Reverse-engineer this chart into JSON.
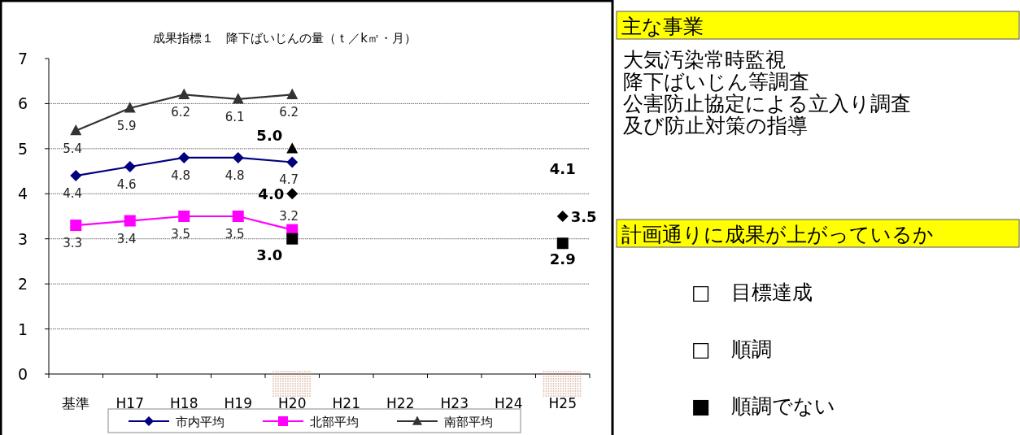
{
  "chart_data": [
    {
      "type": "line",
      "title": "成果指標１　降下ばいじんの量（ｔ／k㎡・月）",
      "categories": [
        "基準",
        "H17",
        "H18",
        "H19",
        "H20",
        "H21",
        "H22",
        "H23",
        "H24",
        "H25"
      ],
      "ylim": [
        0,
        7
      ],
      "yticks": [
        0,
        1,
        2,
        3,
        4,
        5,
        6,
        7
      ],
      "grid": "y",
      "legend": "bottom",
      "series": [
        {
          "name": "市内平均",
          "color": "#000080",
          "marker": "diamond",
          "values": [
            4.4,
            4.6,
            4.8,
            4.8,
            4.7,
            null,
            null,
            null,
            null,
            null
          ],
          "value_labels": [
            "4.4",
            "4.6",
            "4.8",
            "4.8",
            "4.7",
            null,
            null,
            null,
            null,
            null
          ]
        },
        {
          "name": "北部平均",
          "color": "#ff00ff",
          "marker": "square",
          "values": [
            3.3,
            3.4,
            3.5,
            3.5,
            3.2,
            null,
            null,
            null,
            null,
            null
          ],
          "value_labels": [
            "3.3",
            "3.4",
            "3.5",
            "3.5",
            "3.2",
            null,
            null,
            null,
            null,
            null
          ]
        },
        {
          "name": "南部平均",
          "color": "#333333",
          "marker": "triangle",
          "values": [
            5.4,
            5.9,
            6.2,
            6.1,
            6.2,
            null,
            null,
            null,
            null,
            null
          ],
          "value_labels": [
            "5.4",
            "5.9",
            "6.2",
            "6.1",
            "6.2",
            null,
            null,
            null,
            null,
            null
          ]
        },
        {
          "type": "scatter",
          "color": "#000000",
          "marker": "triangle",
          "values": [
            null,
            null,
            null,
            null,
            5.0,
            null,
            null,
            null,
            null,
            null
          ],
          "value_labels": [
            null,
            null,
            null,
            null,
            "5.0",
            null,
            null,
            null,
            null,
            null
          ]
        },
        {
          "type": "scatter",
          "color": "#000000",
          "marker": "diamond",
          "values": [
            null,
            null,
            null,
            null,
            4.0,
            null,
            null,
            null,
            null,
            3.5
          ],
          "value_labels": [
            null,
            null,
            null,
            null,
            "4.0",
            null,
            null,
            null,
            null,
            "3.5"
          ]
        },
        {
          "type": "scatter",
          "color": "#000000",
          "marker": "square",
          "values": [
            null,
            null,
            null,
            null,
            3.0,
            null,
            null,
            null,
            null,
            2.9
          ],
          "value_labels": [
            null,
            null,
            null,
            null,
            "3.0",
            null,
            null,
            null,
            null,
            "2.9"
          ]
        }
      ],
      "annotations": [
        "4.1"
      ]
    },
    {
      "type": "other",
      "title": "主な事業",
      "subtitle": "計画通りに成果が上がっているか",
      "annotations": [
        "大気汚染常時監視",
        "降下ばいじん等調査",
        "公害防止協定による立入り調査",
        "及び防止対策の指導",
        "□　目標達成",
        "□　順調",
        "■　順調でない"
      ]
    }
  ]
}
